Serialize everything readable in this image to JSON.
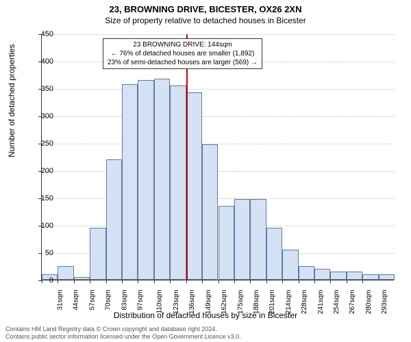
{
  "title": "23, BROWNING DRIVE, BICESTER, OX26 2XN",
  "subtitle": "Size of property relative to detached houses in Bicester",
  "ylabel": "Number of detached properties",
  "xlabel": "Distribution of detached houses by size in Bicester",
  "footer_line1": "Contains HM Land Registry data © Crown copyright and database right 2024.",
  "footer_line2": "Contains public sector information licensed under the Open Government Licence v3.0.",
  "annotation": {
    "line1": "23 BROWNING DRIVE: 144sqm",
    "line2": "← 76% of detached houses are smaller (1,892)",
    "line3": "23% of semi-detached houses are larger (569) →"
  },
  "chart": {
    "type": "histogram",
    "ylim": [
      0,
      450
    ],
    "ytick_step": 50,
    "yticks": [
      0,
      50,
      100,
      150,
      200,
      250,
      300,
      350,
      400,
      450
    ],
    "xticks": [
      "31sqm",
      "44sqm",
      "57sqm",
      "70sqm",
      "83sqm",
      "97sqm",
      "110sqm",
      "123sqm",
      "136sqm",
      "149sqm",
      "162sqm",
      "175sqm",
      "188sqm",
      "201sqm",
      "214sqm",
      "228sqm",
      "241sqm",
      "254sqm",
      "267sqm",
      "280sqm",
      "293sqm"
    ],
    "values": [
      10,
      25,
      5,
      95,
      220,
      358,
      365,
      368,
      355,
      343,
      248,
      135,
      148,
      148,
      95,
      55,
      25,
      20,
      15,
      15,
      10,
      10
    ],
    "bar_fill": "#d4e2f4",
    "bar_stroke": "#5b7ca8",
    "grid_color": "#bfbfbf",
    "background_color": "#ffffff",
    "marker_color": "#cc0000",
    "marker_position_bin": 9,
    "title_fontsize": 13,
    "label_fontsize": 12,
    "tick_fontsize": 10,
    "bar_width_ratio": 1.0
  }
}
